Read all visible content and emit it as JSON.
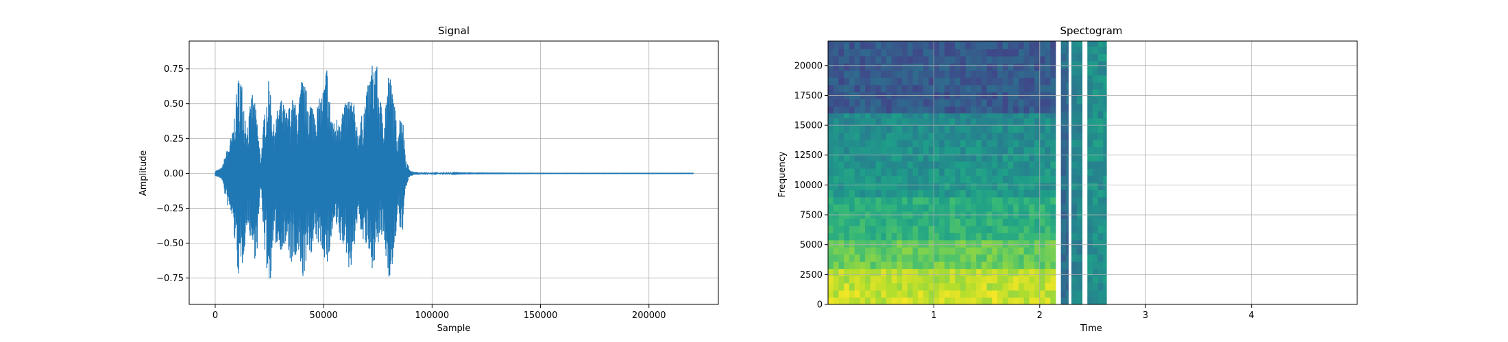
{
  "chart_data": [
    {
      "type": "line",
      "title": "Signal",
      "xlabel": "Sample",
      "ylabel": "Amplitude",
      "xlim": [
        -12000,
        232000
      ],
      "ylim": [
        -0.94,
        0.95
      ],
      "xticks": [
        0,
        50000,
        100000,
        150000,
        200000
      ],
      "xtick_labels": [
        "0",
        "50000",
        "100000",
        "150000",
        "200000"
      ],
      "yticks": [
        -0.75,
        -0.5,
        -0.25,
        0.0,
        0.25,
        0.5,
        0.75
      ],
      "ytick_labels": [
        "−0.75",
        "−0.50",
        "−0.25",
        "0.00",
        "0.25",
        "0.50",
        "0.75"
      ],
      "grid": true,
      "color": "#1f77b4",
      "sample_count": 220500,
      "envelope": {
        "x": [
          0,
          3000,
          5000,
          8000,
          10000,
          11500,
          13000,
          15000,
          17000,
          19000,
          21000,
          23000,
          25000,
          27000,
          30000,
          33000,
          36000,
          38000,
          40000,
          42000,
          45000,
          47000,
          50000,
          51500,
          53000,
          55000,
          57000,
          60000,
          62000,
          64000,
          66000,
          68000,
          70000,
          72000,
          74000,
          75000,
          76500,
          78000,
          80000,
          82000,
          84000,
          86000,
          88000,
          90000,
          92000,
          94000,
          96000,
          100000,
          105000,
          115000,
          150000,
          220000
        ],
        "upper": [
          0.02,
          0.04,
          0.15,
          0.3,
          0.62,
          0.77,
          0.55,
          0.35,
          0.6,
          0.45,
          0.1,
          0.5,
          0.7,
          0.35,
          0.55,
          0.45,
          0.55,
          0.45,
          0.7,
          0.6,
          0.5,
          0.5,
          0.62,
          0.8,
          0.5,
          0.35,
          0.45,
          0.5,
          0.58,
          0.5,
          0.3,
          0.45,
          0.6,
          0.78,
          0.86,
          0.7,
          0.5,
          0.45,
          0.75,
          0.6,
          0.3,
          0.5,
          0.1,
          0.02,
          0.01,
          0.01,
          0.005,
          0.004,
          0.005,
          0.002,
          0.001,
          0.001
        ],
        "lower": [
          -0.02,
          -0.04,
          -0.2,
          -0.35,
          -0.65,
          -0.83,
          -0.6,
          -0.35,
          -0.55,
          -0.65,
          -0.1,
          -0.6,
          -0.85,
          -0.5,
          -0.55,
          -0.55,
          -0.7,
          -0.6,
          -0.8,
          -0.65,
          -0.55,
          -0.5,
          -0.58,
          -0.7,
          -0.55,
          -0.35,
          -0.5,
          -0.55,
          -0.72,
          -0.55,
          -0.3,
          -0.5,
          -0.55,
          -0.7,
          -0.6,
          -0.55,
          -0.45,
          -0.55,
          -0.75,
          -0.72,
          -0.3,
          -0.5,
          -0.1,
          -0.02,
          -0.01,
          -0.01,
          -0.005,
          -0.004,
          -0.005,
          -0.002,
          -0.001,
          -0.001
        ]
      }
    },
    {
      "type": "heatmap",
      "title": "Spectogram",
      "xlabel": "Time",
      "ylabel": "Frequency",
      "xlim": [
        0,
        5.0
      ],
      "ylim": [
        0,
        22050
      ],
      "xticks": [
        1,
        2,
        3,
        4
      ],
      "xtick_labels": [
        "1",
        "2",
        "3",
        "4"
      ],
      "yticks": [
        0,
        2500,
        5000,
        7500,
        10000,
        12500,
        15000,
        17500,
        20000
      ],
      "ytick_labels": [
        "0",
        "2500",
        "5000",
        "7500",
        "10000",
        "12500",
        "15000",
        "17500",
        "20000"
      ],
      "grid": true,
      "colormap": "viridis",
      "regions": [
        {
          "t0": 0.0,
          "t1": 2.15,
          "f0": 16000,
          "f1": 22050,
          "level": 0.28
        },
        {
          "t0": 0.0,
          "t1": 2.15,
          "f0": 0,
          "f1": 16000,
          "level": 0.62
        },
        {
          "t0": 2.2,
          "t1": 2.27,
          "f0": 0,
          "f1": 22050,
          "level": 0.35
        },
        {
          "t0": 2.3,
          "t1": 2.4,
          "f0": 0,
          "f1": 22050,
          "level": 0.45
        },
        {
          "t0": 2.45,
          "t1": 2.63,
          "f0": 0,
          "f1": 22050,
          "level": 0.5
        }
      ],
      "bands": [
        {
          "f0": 0,
          "f1": 2500,
          "level": 0.92
        },
        {
          "f0": 2500,
          "f1": 5000,
          "level": 0.8
        },
        {
          "f0": 5000,
          "f1": 9000,
          "level": 0.7
        }
      ]
    }
  ]
}
